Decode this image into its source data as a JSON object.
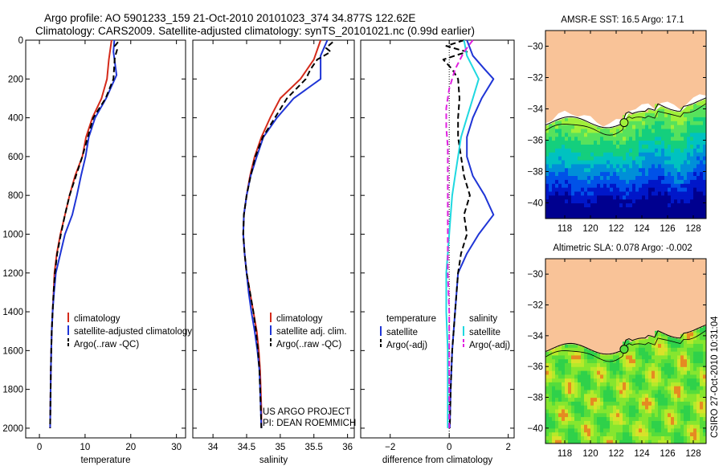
{
  "figure": {
    "title_line1": "Argo profile: AO 5901233_159 21-Oct-2010 20101023_374 34.877S 122.62E",
    "title_line2": "Climatology: CARS2009. Satellite-adjusted climatology: synTS_20101021.nc (0.99d earlier)",
    "credit": "US ARGO PROJECT",
    "pi": "PI: DEAN ROEMMICH",
    "side_stamp": "CSIRO 27-Oct-2010 10:31:04"
  },
  "colors": {
    "climatology": "#d42a1a",
    "satellite": "#1f35d6",
    "argo": "#000000",
    "satellite_diff": "#1fd8e0",
    "argo_diff_sal": "#e020e0",
    "land": "#f9c398"
  },
  "chart_data": [
    {
      "type": "line",
      "id": "temperature",
      "xlabel": "temperature",
      "ylabel": "",
      "xlim": [
        -3,
        32
      ],
      "ylim": [
        2050,
        0
      ],
      "x_ticks": [
        0,
        10,
        20,
        30
      ],
      "y_ticks": [
        0,
        200,
        400,
        600,
        800,
        1000,
        1200,
        1400,
        1600,
        1800,
        2000
      ],
      "legend": [
        "climatology",
        "satellite-adjusted climatology",
        "Argo(..raw -QC)"
      ],
      "series": [
        {
          "name": "climatology",
          "points": [
            [
              15.8,
              0
            ],
            [
              15.2,
              100
            ],
            [
              14.8,
              200
            ],
            [
              13.6,
              300
            ],
            [
              11.6,
              400
            ],
            [
              10.2,
              500
            ],
            [
              9.4,
              600
            ],
            [
              7.8,
              700
            ],
            [
              6.6,
              800
            ],
            [
              5.6,
              900
            ],
            [
              4.6,
              1000
            ],
            [
              3.8,
              1100
            ],
            [
              3.3,
              1200
            ],
            [
              3.1,
              1300
            ],
            [
              2.9,
              1400
            ],
            [
              2.7,
              1500
            ],
            [
              2.6,
              1600
            ],
            [
              2.5,
              1700
            ],
            [
              2.45,
              1800
            ],
            [
              2.4,
              1900
            ],
            [
              2.35,
              2000
            ]
          ]
        },
        {
          "name": "satellite-adjusted climatology",
          "points": [
            [
              16.4,
              0
            ],
            [
              16.2,
              60
            ],
            [
              16.9,
              180
            ],
            [
              14.6,
              300
            ],
            [
              12.2,
              400
            ],
            [
              10.8,
              500
            ],
            [
              10.1,
              600
            ],
            [
              9.1,
              700
            ],
            [
              8.2,
              800
            ],
            [
              7.2,
              900
            ],
            [
              5.6,
              1000
            ],
            [
              4.6,
              1100
            ],
            [
              3.6,
              1200
            ],
            [
              3.2,
              1300
            ],
            [
              2.9,
              1400
            ],
            [
              2.7,
              1500
            ],
            [
              2.6,
              1600
            ],
            [
              2.5,
              1700
            ],
            [
              2.45,
              1800
            ],
            [
              2.4,
              1900
            ],
            [
              2.35,
              2000
            ]
          ]
        },
        {
          "name": "Argo(..raw -QC)",
          "points": [
            [
              17.2,
              10
            ],
            [
              16.5,
              30
            ],
            [
              17.0,
              50
            ],
            [
              16.5,
              90
            ],
            [
              16.2,
              200
            ],
            [
              14.5,
              300
            ],
            [
              11.8,
              400
            ],
            [
              10.6,
              500
            ],
            [
              9.4,
              600
            ],
            [
              8.0,
              700
            ],
            [
              6.6,
              800
            ],
            [
              5.6,
              900
            ],
            [
              4.7,
              1000
            ],
            [
              3.9,
              1100
            ],
            [
              3.4,
              1200
            ],
            [
              3.1,
              1300
            ],
            [
              2.9,
              1400
            ],
            [
              2.7,
              1500
            ],
            [
              2.6,
              1600
            ],
            [
              2.5,
              1700
            ],
            [
              2.45,
              1800
            ],
            [
              2.4,
              1900
            ],
            [
              2.35,
              2000
            ]
          ]
        }
      ]
    },
    {
      "type": "line",
      "id": "salinity",
      "xlabel": "salinity",
      "ylabel": "",
      "xlim": [
        33.7,
        36.1
      ],
      "ylim": [
        2050,
        0
      ],
      "x_ticks": [
        34,
        34.5,
        35,
        35.5,
        36
      ],
      "y_ticks": [
        0,
        200,
        400,
        600,
        800,
        1000,
        1200,
        1400,
        1600,
        1800,
        2000
      ],
      "legend": [
        "climatology",
        "satellite adj. clim.",
        "Argo(..raw -QC)"
      ],
      "series": [
        {
          "name": "climatology",
          "points": [
            [
              35.6,
              0
            ],
            [
              35.5,
              100
            ],
            [
              35.3,
              200
            ],
            [
              35.0,
              300
            ],
            [
              34.85,
              400
            ],
            [
              34.72,
              500
            ],
            [
              34.62,
              600
            ],
            [
              34.55,
              700
            ],
            [
              34.5,
              800
            ],
            [
              34.46,
              900
            ],
            [
              34.45,
              1000
            ],
            [
              34.47,
              1100
            ],
            [
              34.5,
              1200
            ],
            [
              34.55,
              1300
            ],
            [
              34.6,
              1400
            ],
            [
              34.65,
              1500
            ],
            [
              34.68,
              1600
            ],
            [
              34.7,
              1700
            ],
            [
              34.71,
              1800
            ],
            [
              34.72,
              1900
            ],
            [
              34.72,
              2000
            ]
          ]
        },
        {
          "name": "satellite adj. clim.",
          "points": [
            [
              35.7,
              0
            ],
            [
              35.6,
              80
            ],
            [
              35.6,
              200
            ],
            [
              35.2,
              300
            ],
            [
              34.95,
              400
            ],
            [
              34.75,
              500
            ],
            [
              34.65,
              600
            ],
            [
              34.56,
              700
            ],
            [
              34.5,
              800
            ],
            [
              34.46,
              900
            ],
            [
              34.45,
              1000
            ],
            [
              34.47,
              1100
            ],
            [
              34.5,
              1200
            ],
            [
              34.53,
              1300
            ],
            [
              34.57,
              1400
            ],
            [
              34.62,
              1500
            ],
            [
              34.66,
              1600
            ],
            [
              34.69,
              1700
            ],
            [
              34.7,
              1800
            ],
            [
              34.71,
              1900
            ],
            [
              34.72,
              2000
            ]
          ]
        },
        {
          "name": "Argo(..raw -QC)",
          "points": [
            [
              35.78,
              10
            ],
            [
              35.68,
              40
            ],
            [
              35.75,
              60
            ],
            [
              35.55,
              100
            ],
            [
              35.45,
              150
            ],
            [
              35.38,
              200
            ],
            [
              35.1,
              300
            ],
            [
              34.92,
              400
            ],
            [
              34.74,
              500
            ],
            [
              34.63,
              600
            ],
            [
              34.56,
              700
            ],
            [
              34.5,
              800
            ],
            [
              34.46,
              900
            ],
            [
              34.45,
              1000
            ],
            [
              34.47,
              1100
            ],
            [
              34.5,
              1200
            ],
            [
              34.55,
              1300
            ],
            [
              34.6,
              1400
            ],
            [
              34.64,
              1500
            ],
            [
              34.67,
              1600
            ],
            [
              34.69,
              1700
            ],
            [
              34.7,
              1800
            ],
            [
              34.71,
              1900
            ],
            [
              34.72,
              2000
            ]
          ]
        }
      ]
    },
    {
      "type": "line",
      "id": "difference",
      "xlabel": "difference from climatology",
      "ylabel": "",
      "xlim": [
        -3,
        2.2
      ],
      "ylim": [
        2050,
        0
      ],
      "x_ticks": [
        -2,
        0,
        2
      ],
      "y_ticks": [
        0,
        200,
        400,
        600,
        800,
        1000,
        1200,
        1400,
        1600,
        1800,
        2000
      ],
      "legend_left_title": "temperature",
      "legend_right_title": "salinity",
      "legend": [
        "satellite",
        "Argo(-adj)",
        "satellite",
        "Argo(-adj)"
      ],
      "series": [
        {
          "name": "temperature satellite",
          "points": [
            [
              0.6,
              0
            ],
            [
              0.8,
              80
            ],
            [
              1.2,
              150
            ],
            [
              1.5,
              200
            ],
            [
              1.1,
              300
            ],
            [
              0.8,
              400
            ],
            [
              0.6,
              500
            ],
            [
              0.6,
              600
            ],
            [
              0.8,
              700
            ],
            [
              1.2,
              800
            ],
            [
              1.5,
              900
            ],
            [
              1.0,
              1000
            ],
            [
              0.6,
              1100
            ],
            [
              0.3,
              1200
            ],
            [
              0.2,
              1400
            ],
            [
              0.1,
              1600
            ],
            [
              0.05,
              1800
            ],
            [
              0.02,
              2000
            ]
          ]
        },
        {
          "name": "temperature Argo(-adj)",
          "points": [
            [
              0.5,
              0
            ],
            [
              -0.1,
              30
            ],
            [
              0.6,
              60
            ],
            [
              -0.2,
              100
            ],
            [
              0.1,
              150
            ],
            [
              0.3,
              200
            ],
            [
              0.35,
              300
            ],
            [
              0.3,
              400
            ],
            [
              0.3,
              500
            ],
            [
              0.4,
              600
            ],
            [
              0.5,
              700
            ],
            [
              0.7,
              800
            ],
            [
              0.5,
              900
            ],
            [
              0.6,
              1000
            ],
            [
              0.4,
              1100
            ],
            [
              0.3,
              1200
            ],
            [
              0.2,
              1400
            ],
            [
              0.1,
              1600
            ],
            [
              0.05,
              1800
            ],
            [
              0.02,
              2000
            ]
          ]
        },
        {
          "name": "salinity satellite",
          "points": [
            [
              0.5,
              0
            ],
            [
              0.6,
              80
            ],
            [
              1.0,
              200
            ],
            [
              0.8,
              300
            ],
            [
              0.6,
              400
            ],
            [
              0.4,
              500
            ],
            [
              0.3,
              600
            ],
            [
              0.2,
              700
            ],
            [
              0.1,
              800
            ],
            [
              0.05,
              900
            ],
            [
              0.0,
              1000
            ],
            [
              -0.05,
              1100
            ],
            [
              -0.1,
              1200
            ],
            [
              -0.1,
              1400
            ],
            [
              -0.05,
              1600
            ],
            [
              -0.05,
              1800
            ],
            [
              -0.05,
              2000
            ]
          ]
        },
        {
          "name": "salinity Argo(-adj)",
          "points": [
            [
              0.8,
              0
            ],
            [
              0.5,
              60
            ],
            [
              0.2,
              150
            ],
            [
              0.0,
              250
            ],
            [
              -0.1,
              350
            ],
            [
              -0.1,
              450
            ],
            [
              -0.05,
              550
            ],
            [
              -0.05,
              650
            ],
            [
              -0.05,
              750
            ],
            [
              -0.05,
              850
            ],
            [
              -0.05,
              950
            ],
            [
              -0.05,
              1050
            ],
            [
              -0.05,
              1200
            ],
            [
              0.0,
              1400
            ],
            [
              0.0,
              1600
            ],
            [
              0.0,
              1800
            ],
            [
              0.0,
              2000
            ]
          ]
        }
      ]
    },
    {
      "type": "heatmap",
      "id": "sst-map",
      "title": "AMSR-E SST: 16.5 Argo: 17.1",
      "xlim": [
        116.5,
        129
      ],
      "ylim": [
        -41,
        -29
      ],
      "x_ticks": [
        118,
        120,
        122,
        124,
        126,
        128
      ],
      "y_ticks": [
        -30,
        -32,
        -34,
        -36,
        -38,
        -40
      ],
      "argo_position": [
        122.62,
        -34.877
      ]
    },
    {
      "type": "heatmap",
      "id": "sla-map",
      "title": "Altimetric SLA: 0.078 Argo: -0.002",
      "xlim": [
        116.5,
        129
      ],
      "ylim": [
        -41,
        -29
      ],
      "x_ticks": [
        118,
        120,
        122,
        124,
        126,
        128
      ],
      "y_ticks": [
        -30,
        -32,
        -34,
        -36,
        -38,
        -40
      ],
      "argo_position": [
        122.62,
        -34.877
      ]
    }
  ]
}
